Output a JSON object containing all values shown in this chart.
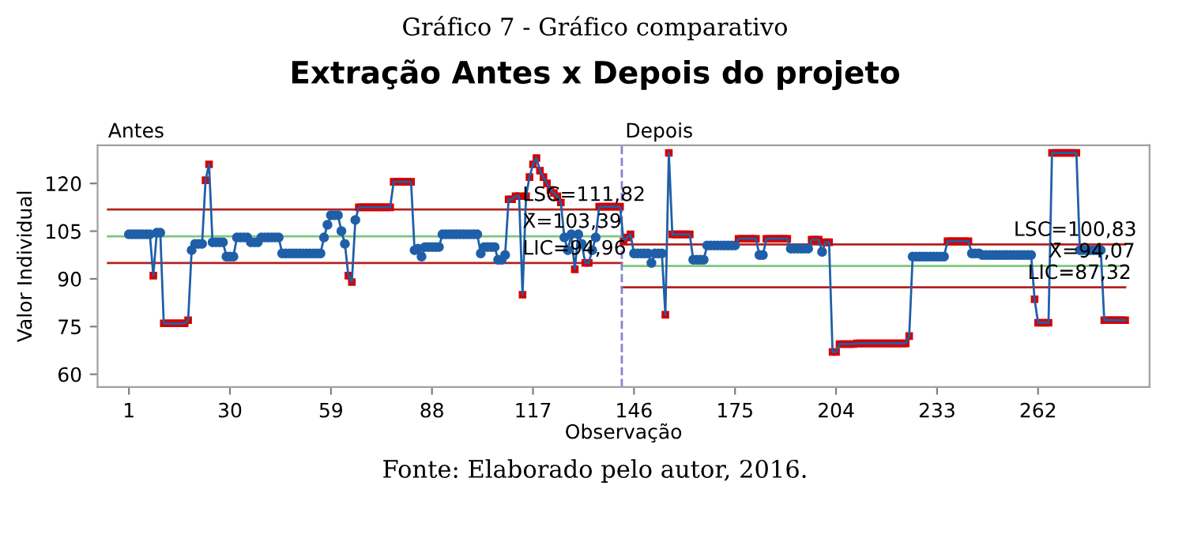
{
  "chart_data": {
    "type": "line",
    "title": "Extração Antes x Depois do projeto",
    "xlabel": "Observação",
    "ylabel": "Valor Individual",
    "x": [
      1,
      2,
      3,
      4,
      5,
      6,
      7,
      8,
      9,
      10,
      11,
      12,
      13,
      14,
      15,
      16,
      17,
      18,
      19,
      20,
      21,
      22,
      23,
      24,
      25,
      26,
      27,
      28,
      29,
      30,
      31,
      32,
      33,
      34,
      35,
      36,
      37,
      38,
      39,
      40,
      41,
      42,
      43,
      44,
      45,
      46,
      47,
      48,
      49,
      50,
      51,
      52,
      53,
      54,
      55,
      56,
      57,
      58,
      59,
      60,
      61,
      62,
      63,
      64,
      65,
      66,
      67,
      68,
      69,
      70,
      71,
      72,
      73,
      74,
      75,
      76,
      77,
      78,
      79,
      80,
      81,
      82,
      83,
      84,
      85,
      86,
      87,
      88,
      89,
      90,
      91,
      92,
      93,
      94,
      95,
      96,
      97,
      98,
      99,
      100,
      101,
      102,
      103,
      104,
      105,
      106,
      107,
      108,
      109,
      110,
      111,
      112,
      113,
      114,
      115,
      116,
      117,
      118,
      119,
      120,
      121,
      122,
      123,
      124,
      125,
      126,
      127,
      128,
      129,
      130,
      131,
      132,
      133,
      134,
      135,
      136,
      137,
      138,
      139,
      140,
      141,
      142,
      143,
      144,
      145,
      146,
      147,
      148,
      149,
      150,
      151,
      152,
      153,
      154,
      155,
      156,
      157,
      158,
      159,
      160,
      161,
      162,
      163,
      164,
      165,
      166,
      167,
      168,
      169,
      170,
      171,
      172,
      173,
      174,
      175,
      176,
      177,
      178,
      179,
      180,
      181,
      182,
      183,
      184,
      185,
      186,
      187,
      188,
      189,
      190,
      191,
      192,
      193,
      194,
      195,
      196,
      197,
      198,
      199,
      200,
      201,
      202,
      203,
      204,
      205,
      206,
      207,
      208,
      209,
      210,
      211,
      212,
      213,
      214,
      215,
      216,
      217,
      218,
      219,
      220,
      221,
      222,
      223,
      224,
      225,
      226,
      227,
      228,
      229,
      230,
      231,
      232,
      233,
      234,
      235,
      236,
      237,
      238,
      239,
      240,
      241,
      242,
      243,
      244,
      245,
      246,
      247,
      248,
      249,
      250,
      251,
      252,
      253,
      254,
      255,
      256,
      257,
      258,
      259,
      260,
      261,
      262,
      263,
      264,
      265,
      266,
      267,
      268,
      269,
      270,
      271,
      272,
      273,
      274,
      275,
      276,
      277,
      278,
      279,
      280,
      281,
      282,
      283,
      284,
      285,
      286,
      287
    ],
    "series": [
      {
        "color": "#1f5fa8",
        "marker": "circle",
        "values": [
          104,
          104,
          104,
          104,
          104,
          104,
          104,
          91,
          104.5,
          104.5,
          76,
          76,
          76,
          76,
          76,
          76,
          76,
          77,
          99,
          101,
          101,
          101,
          121,
          126,
          101.5,
          101.5,
          101.5,
          101.5,
          97,
          97,
          97,
          103,
          103,
          103,
          103,
          101.5,
          101.5,
          101.5,
          103,
          103,
          103,
          103,
          103,
          103,
          98,
          98,
          98,
          98,
          98,
          98,
          98,
          98,
          98,
          98,
          98,
          98,
          103,
          107,
          110,
          110,
          110,
          105,
          101,
          91,
          89,
          108.5,
          112.5,
          112.5,
          112.5,
          112.5,
          112.5,
          112.5,
          112.5,
          112.5,
          112.5,
          112.5,
          120.5,
          120.5,
          120.5,
          120.5,
          120.5,
          120.5,
          99,
          99.5,
          97,
          100,
          100,
          100,
          100,
          100,
          104,
          104,
          104,
          104,
          104,
          104,
          104,
          104,
          104,
          104,
          104,
          98,
          100,
          100,
          100,
          100,
          96,
          96,
          97.5,
          115,
          115,
          116,
          116,
          85,
          116,
          122,
          126,
          128,
          124,
          122,
          120,
          118,
          117,
          116,
          114,
          103,
          99,
          104,
          93,
          104,
          101,
          95,
          95,
          99,
          103,
          112.7,
          112.7,
          112.7,
          112.7,
          112.7,
          112.7,
          112.7,
          101.8,
          103,
          104,
          98,
          98,
          98,
          98,
          98,
          95,
          98,
          98,
          98,
          78.7,
          129.6,
          104,
          104,
          104,
          104,
          104,
          104,
          96,
          96,
          96,
          96,
          100.5,
          100.5,
          100.5,
          100.5,
          100.5,
          100.5,
          100.5,
          100.5,
          100.5,
          102.6,
          102.6,
          102.6,
          102.6,
          102.6,
          102.6,
          97.5,
          97.5,
          102.6,
          102.6,
          102.6,
          102.6,
          102.6,
          102.6,
          102.6,
          99.5,
          99.5,
          99.5,
          99.5,
          99.5,
          99.5,
          102.3,
          102.3,
          102.3,
          98.5,
          101.5,
          101.5,
          67,
          67,
          69.5,
          69.5,
          69.5,
          69.5,
          69.5,
          69.7,
          69.7,
          69.7,
          69.7,
          69.7,
          69.7,
          69.7,
          69.7,
          69.7,
          69.7,
          69.7,
          69.7,
          69.7,
          69.7,
          69.7,
          72,
          97,
          97,
          97,
          97,
          97,
          97,
          97,
          97,
          97,
          97,
          101.8,
          101.8,
          101.8,
          101.8,
          101.8,
          101.8,
          101.8,
          98,
          98,
          98,
          97.5,
          97.5,
          97.5,
          97.5,
          97.5,
          97.5,
          97.5,
          97.5,
          97.5,
          97.5,
          97.5,
          97.5,
          97.5,
          97.5,
          97.5,
          83.6,
          76.2,
          76.2,
          76.2,
          76.2,
          129.6,
          129.6,
          129.6,
          129.6,
          129.6,
          129.6,
          129.6,
          129.6,
          99,
          99,
          99,
          99,
          99,
          99,
          99,
          77,
          77,
          77,
          77,
          77,
          77,
          77
        ]
      },
      {
        "type": "scatter",
        "color": "#d40000",
        "marker": "square",
        "x": [
          8,
          11,
          12,
          13,
          14,
          15,
          16,
          17,
          18,
          23,
          24,
          64,
          65,
          67,
          68,
          69,
          70,
          71,
          72,
          73,
          74,
          75,
          76,
          77,
          78,
          79,
          80,
          81,
          82,
          110,
          111,
          112,
          113,
          114,
          115,
          116,
          117,
          118,
          119,
          120,
          121,
          122,
          123,
          124,
          125,
          129,
          132,
          133,
          136,
          137,
          138,
          139,
          140,
          141,
          142,
          143,
          144,
          145,
          155,
          156,
          157,
          158,
          159,
          160,
          161,
          162,
          176,
          177,
          178,
          179,
          180,
          181,
          184,
          185,
          186,
          187,
          188,
          189,
          190,
          197,
          198,
          199,
          201,
          202,
          203,
          204,
          205,
          206,
          207,
          208,
          209,
          210,
          211,
          212,
          213,
          214,
          215,
          216,
          217,
          218,
          219,
          220,
          221,
          222,
          223,
          224,
          225,
          236,
          237,
          238,
          239,
          240,
          241,
          242,
          261,
          262,
          263,
          264,
          265,
          266,
          267,
          268,
          269,
          270,
          271,
          272,
          273,
          281,
          282,
          283,
          284,
          285,
          286,
          287
        ],
        "values": [
          91,
          76,
          76,
          76,
          76,
          76,
          76,
          76,
          77,
          121,
          126,
          91,
          89,
          112.5,
          112.5,
          112.5,
          112.5,
          112.5,
          112.5,
          112.5,
          112.5,
          112.5,
          112.5,
          120.5,
          120.5,
          120.5,
          120.5,
          120.5,
          120.5,
          115,
          115,
          116,
          116,
          85,
          116,
          122,
          126,
          128,
          124,
          122,
          120,
          118,
          117,
          116,
          114,
          93,
          95,
          95,
          112.7,
          112.7,
          112.7,
          112.7,
          112.7,
          112.7,
          112.7,
          101.8,
          103,
          104,
          78.7,
          129.6,
          104,
          104,
          104,
          104,
          104,
          104,
          102.6,
          102.6,
          102.6,
          102.6,
          102.6,
          102.6,
          102.6,
          102.6,
          102.6,
          102.6,
          102.6,
          102.6,
          102.6,
          102.3,
          102.3,
          102.3,
          101.5,
          101.5,
          67,
          67,
          69.5,
          69.5,
          69.5,
          69.5,
          69.5,
          69.7,
          69.7,
          69.7,
          69.7,
          69.7,
          69.7,
          69.7,
          69.7,
          69.7,
          69.7,
          69.7,
          69.7,
          69.7,
          69.7,
          69.7,
          72,
          101.8,
          101.8,
          101.8,
          101.8,
          101.8,
          101.8,
          101.8,
          83.6,
          76.2,
          76.2,
          76.2,
          76.2,
          129.6,
          129.6,
          129.6,
          129.6,
          129.6,
          129.6,
          129.6,
          129.6,
          77,
          77,
          77,
          77,
          77,
          77,
          77
        ]
      },
      {
        "type": "line",
        "color": "#b22222",
        "x": [
          -5,
          142.5
        ],
        "values": [
          111.82,
          111.82
        ]
      },
      {
        "type": "line",
        "color": "#7dc87d",
        "x": [
          -5,
          142.5
        ],
        "values": [
          103.39,
          103.39
        ]
      },
      {
        "type": "line",
        "color": "#b22222",
        "x": [
          -5,
          142.5
        ],
        "values": [
          94.96,
          94.96
        ]
      },
      {
        "type": "line",
        "color": "#b22222",
        "x": [
          142.5,
          287
        ],
        "values": [
          100.83,
          100.83
        ]
      },
      {
        "type": "line",
        "color": "#7dc87d",
        "x": [
          142.5,
          287
        ],
        "values": [
          94.07,
          94.07
        ]
      },
      {
        "type": "line",
        "color": "#b22222",
        "x": [
          142.5,
          287
        ],
        "values": [
          87.32,
          87.32
        ]
      }
    ],
    "ref_lines": [
      {
        "axis": "x",
        "value": 142.5,
        "color": "#8a7fd0",
        "line_style": "dashed"
      }
    ],
    "annotations": [
      "Gráfico 7 - Gráfico comparativo",
      "Antes",
      "Depois",
      "Fonte: Elaborado pelo autor, 2016.",
      {
        "text": "LSC=111,82",
        "x": 114,
        "y": 111.82
      },
      {
        "text": "X̄=103,39",
        "x": 114,
        "y": 103.39
      },
      {
        "text": "LIC=94,96",
        "x": 114,
        "y": 94.96
      },
      {
        "text": "LSC=100,83",
        "x": 255,
        "y": 100.83
      },
      {
        "text": "X̄=94,07",
        "x": 265,
        "y": 94.07
      },
      {
        "text": "LIC=87,32",
        "x": 259,
        "y": 87.32
      }
    ],
    "xlim": [
      -8,
      294
    ],
    "ylim": [
      56,
      132
    ],
    "xticks": [
      1,
      30,
      59,
      88,
      117,
      146,
      175,
      204,
      233,
      262
    ],
    "yticks": [
      60,
      75,
      90,
      105,
      120
    ],
    "grid": false,
    "legend": false
  }
}
